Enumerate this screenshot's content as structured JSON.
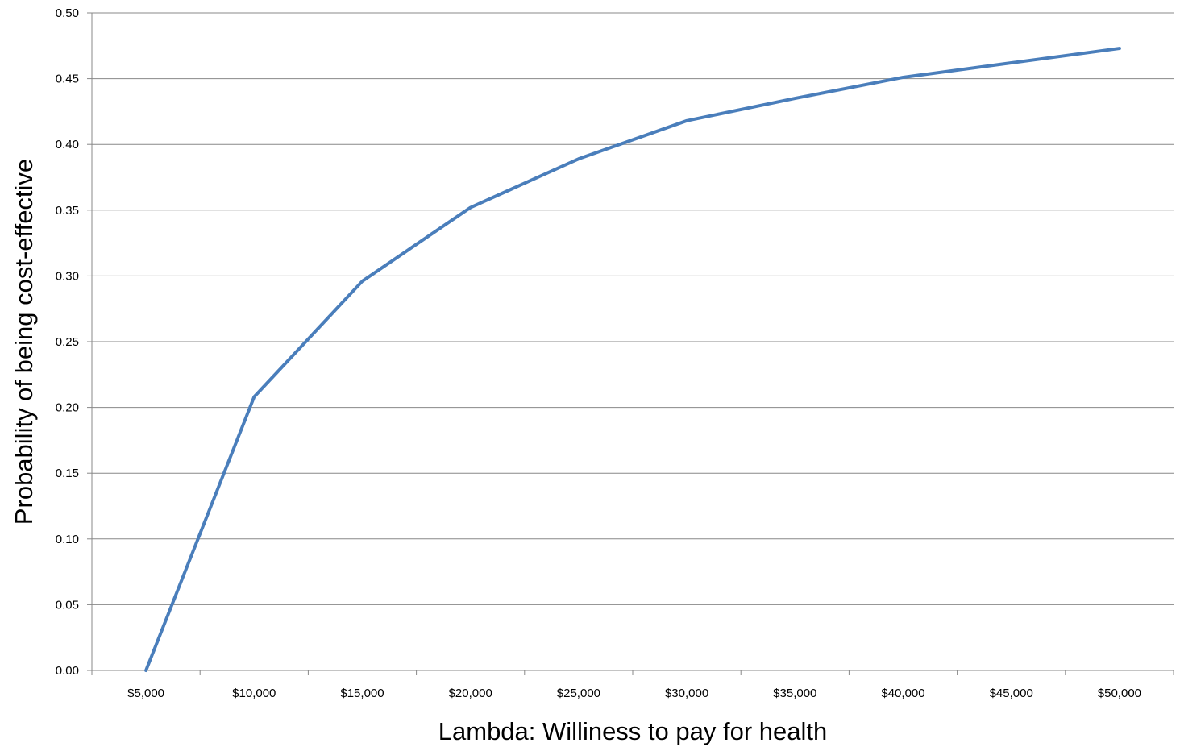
{
  "chart_data": {
    "type": "line",
    "title": "",
    "xlabel": "Lambda: Williness to pay for health",
    "ylabel": "Probability  of being cost-effective",
    "categories": [
      "$5,000",
      "$10,000",
      "$15,000",
      "$20,000",
      "$25,000",
      "$30,000",
      "$35,000",
      "$40,000",
      "$45,000",
      "$50,000"
    ],
    "x": [
      5000,
      10000,
      15000,
      20000,
      25000,
      30000,
      35000,
      40000,
      45000,
      50000
    ],
    "series": [
      {
        "values": [
          0.0,
          0.208,
          0.296,
          0.352,
          0.389,
          0.418,
          0.435,
          0.451,
          0.462,
          0.473
        ]
      }
    ],
    "ylim": [
      0,
      0.5
    ],
    "yticks": [
      "0.00",
      "0.05",
      "0.10",
      "0.15",
      "0.20",
      "0.25",
      "0.30",
      "0.35",
      "0.40",
      "0.45",
      "0.50"
    ],
    "grid": "horizontal",
    "legend": "none",
    "colors": {
      "line": "#4A7EBB",
      "grid": "#888888",
      "axis": "#888888"
    }
  }
}
